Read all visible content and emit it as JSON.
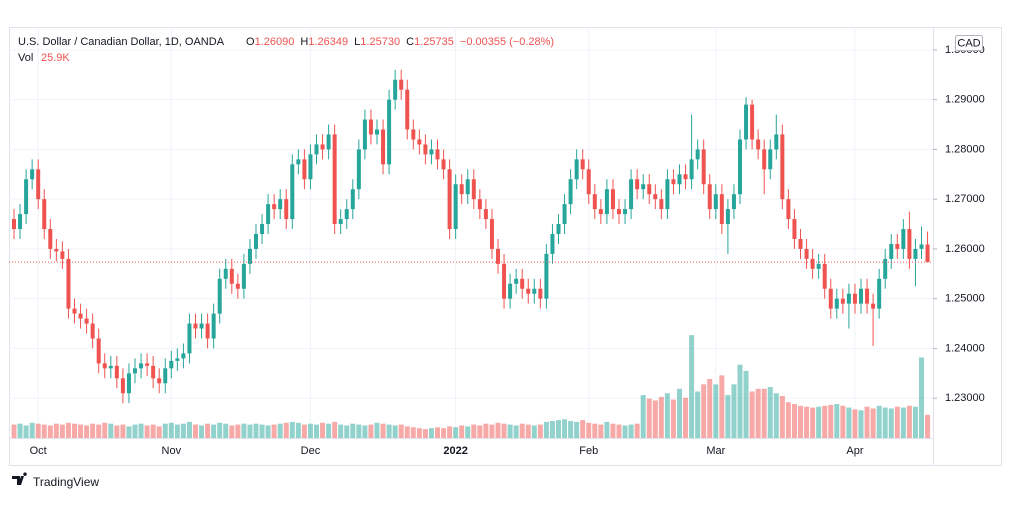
{
  "chart_data": {
    "type": "candlestick",
    "header": {
      "title": "U.S. Dollar / Canadian Dollar, 1D, OANDA",
      "o_label": "O",
      "o": "1.26090",
      "h_label": "H",
      "h": "1.26349",
      "l_label": "L",
      "l": "1.25730",
      "c_label": "C",
      "c": "1.25735",
      "change": "−0.00355 (−0.28%)",
      "vol_label": "Vol",
      "vol": "25.9K"
    },
    "currency": "CAD",
    "brand": "TradingView",
    "up_color": "#26a69a",
    "down_color": "#ef5350",
    "ylim": [
      1.222,
      1.3046
    ],
    "yticks": [
      {
        "value": 1.23,
        "label": "1.23000"
      },
      {
        "value": 1.24,
        "label": "1.24000"
      },
      {
        "value": 1.25,
        "label": "1.25000"
      },
      {
        "value": 1.26,
        "label": "1.26000"
      },
      {
        "value": 1.27,
        "label": "1.27000"
      },
      {
        "value": 1.28,
        "label": "1.28000"
      },
      {
        "value": 1.29,
        "label": "1.29000"
      },
      {
        "value": 1.3,
        "label": "1.30000"
      }
    ],
    "xticks": [
      {
        "value": 4,
        "label": "Oct"
      },
      {
        "value": 26,
        "label": "Nov"
      },
      {
        "value": 49,
        "label": "Dec"
      },
      {
        "value": 73,
        "label": "2022"
      },
      {
        "value": 95,
        "label": "Feb"
      },
      {
        "value": 116,
        "label": "Mar"
      },
      {
        "value": 139,
        "label": "Apr"
      }
    ],
    "volume_lim": [
      0,
      180000
    ],
    "grid": true,
    "open": [
      1.266,
      1.264,
      1.267,
      1.274,
      1.276,
      1.27,
      1.264,
      1.26,
      1.2595,
      1.258,
      1.248,
      1.247,
      1.246,
      1.245,
      1.242,
      1.237,
      1.236,
      1.2365,
      1.234,
      1.231,
      1.235,
      1.236,
      1.237,
      1.2365,
      1.234,
      1.233,
      1.236,
      1.2375,
      1.238,
      1.239,
      1.245,
      1.244,
      1.245,
      1.242,
      1.247,
      1.254,
      1.256,
      1.253,
      1.252,
      1.257,
      1.26,
      1.263,
      1.265,
      1.269,
      1.268,
      1.27,
      1.266,
      1.277,
      1.278,
      1.274,
      1.279,
      1.281,
      1.28,
      1.283,
      1.265,
      1.266,
      1.268,
      1.272,
      1.28,
      1.286,
      1.283,
      1.284,
      1.277,
      1.29,
      1.294,
      1.292,
      1.284,
      1.282,
      1.281,
      1.279,
      1.28,
      1.278,
      1.276,
      1.264,
      1.273,
      1.271,
      1.274,
      1.27,
      1.268,
      1.266,
      1.26,
      1.257,
      1.25,
      1.253,
      1.254,
      1.252,
      1.251,
      1.252,
      1.25,
      1.259,
      1.263,
      1.265,
      1.269,
      1.274,
      1.278,
      1.276,
      1.271,
      1.268,
      1.267,
      1.272,
      1.268,
      1.267,
      1.268,
      1.274,
      1.272,
      1.273,
      1.271,
      1.27,
      1.268,
      1.274,
      1.273,
      1.275,
      1.274,
      1.278,
      1.28,
      1.273,
      1.268,
      1.271,
      1.265,
      1.268,
      1.271,
      1.282,
      1.289,
      1.282,
      1.28,
      1.276,
      1.28,
      1.283,
      1.27,
      1.266,
      1.262,
      1.26,
      1.258,
      1.256,
      1.257,
      1.252,
      1.248,
      1.25,
      1.249,
      1.251,
      1.249,
      1.252,
      1.249,
      1.248,
      1.254,
      1.258,
      1.261,
      1.26,
      1.264,
      1.258,
      1.26,
      1.2609
    ],
    "high": [
      1.268,
      1.269,
      1.276,
      1.278,
      1.278,
      1.272,
      1.266,
      1.262,
      1.2615,
      1.26,
      1.25,
      1.249,
      1.248,
      1.247,
      1.244,
      1.239,
      1.2385,
      1.2385,
      1.236,
      1.237,
      1.238,
      1.239,
      1.239,
      1.2385,
      1.236,
      1.238,
      1.2395,
      1.24,
      1.241,
      1.247,
      1.247,
      1.247,
      1.247,
      1.249,
      1.256,
      1.258,
      1.258,
      1.255,
      1.259,
      1.262,
      1.265,
      1.267,
      1.271,
      1.271,
      1.272,
      1.272,
      1.279,
      1.28,
      1.28,
      1.281,
      1.283,
      1.283,
      1.285,
      1.285,
      1.268,
      1.27,
      1.274,
      1.282,
      1.288,
      1.288,
      1.286,
      1.286,
      1.292,
      1.296,
      1.296,
      1.294,
      1.286,
      1.284,
      1.283,
      1.282,
      1.282,
      1.28,
      1.278,
      1.275,
      1.275,
      1.276,
      1.276,
      1.272,
      1.27,
      1.268,
      1.262,
      1.259,
      1.255,
      1.256,
      1.256,
      1.254,
      1.254,
      1.254,
      1.261,
      1.265,
      1.267,
      1.271,
      1.276,
      1.28,
      1.28,
      1.278,
      1.273,
      1.27,
      1.274,
      1.274,
      1.27,
      1.27,
      1.276,
      1.276,
      1.275,
      1.275,
      1.273,
      1.272,
      1.276,
      1.276,
      1.277,
      1.277,
      1.287,
      1.282,
      1.282,
      1.275,
      1.273,
      1.273,
      1.27,
      1.273,
      1.284,
      1.2905,
      1.29,
      1.284,
      1.282,
      1.282,
      1.287,
      1.285,
      1.272,
      1.268,
      1.264,
      1.262,
      1.26,
      1.259,
      1.259,
      1.254,
      1.252,
      1.252,
      1.253,
      1.253,
      1.254,
      1.254,
      1.251,
      1.256,
      1.26,
      1.263,
      1.263,
      1.266,
      1.2675,
      1.262,
      1.2645,
      1.26349
    ],
    "low": [
      1.262,
      1.262,
      1.265,
      1.272,
      1.268,
      1.262,
      1.258,
      1.2575,
      1.256,
      1.246,
      1.245,
      1.244,
      1.243,
      1.24,
      1.235,
      1.234,
      1.234,
      1.232,
      1.229,
      1.229,
      1.233,
      1.234,
      1.2345,
      1.232,
      1.231,
      1.231,
      1.234,
      1.2355,
      1.236,
      1.237,
      1.242,
      1.242,
      1.24,
      1.24,
      1.245,
      1.252,
      1.251,
      1.25,
      1.25,
      1.255,
      1.258,
      1.261,
      1.263,
      1.266,
      1.266,
      1.264,
      1.264,
      1.275,
      1.272,
      1.272,
      1.277,
      1.278,
      1.278,
      1.263,
      1.263,
      1.264,
      1.266,
      1.27,
      1.278,
      1.281,
      1.281,
      1.275,
      1.275,
      1.288,
      1.29,
      1.282,
      1.28,
      1.279,
      1.277,
      1.277,
      1.276,
      1.274,
      1.262,
      1.262,
      1.269,
      1.269,
      1.268,
      1.266,
      1.264,
      1.258,
      1.255,
      1.248,
      1.248,
      1.251,
      1.25,
      1.249,
      1.249,
      1.248,
      1.248,
      1.257,
      1.261,
      1.263,
      1.267,
      1.272,
      1.274,
      1.269,
      1.266,
      1.265,
      1.265,
      1.266,
      1.265,
      1.265,
      1.266,
      1.27,
      1.27,
      1.269,
      1.268,
      1.266,
      1.266,
      1.271,
      1.271,
      1.272,
      1.272,
      1.276,
      1.271,
      1.266,
      1.266,
      1.263,
      1.259,
      1.266,
      1.269,
      1.28,
      1.28,
      1.278,
      1.271,
      1.274,
      1.278,
      1.268,
      1.264,
      1.26,
      1.258,
      1.256,
      1.254,
      1.254,
      1.25,
      1.246,
      1.246,
      1.247,
      1.244,
      1.247,
      1.247,
      1.247,
      1.2405,
      1.246,
      1.252,
      1.256,
      1.258,
      1.258,
      1.256,
      1.2525,
      1.258,
      1.2573
    ],
    "close": [
      1.264,
      1.267,
      1.274,
      1.276,
      1.27,
      1.264,
      1.26,
      1.2595,
      1.258,
      1.248,
      1.247,
      1.246,
      1.245,
      1.242,
      1.237,
      1.236,
      1.2365,
      1.234,
      1.231,
      1.235,
      1.236,
      1.237,
      1.2365,
      1.234,
      1.233,
      1.236,
      1.2375,
      1.238,
      1.239,
      1.245,
      1.244,
      1.245,
      1.242,
      1.247,
      1.254,
      1.256,
      1.253,
      1.252,
      1.257,
      1.26,
      1.263,
      1.265,
      1.269,
      1.268,
      1.27,
      1.266,
      1.277,
      1.278,
      1.274,
      1.279,
      1.281,
      1.28,
      1.283,
      1.265,
      1.266,
      1.268,
      1.272,
      1.28,
      1.286,
      1.283,
      1.284,
      1.277,
      1.29,
      1.294,
      1.292,
      1.284,
      1.282,
      1.281,
      1.279,
      1.28,
      1.278,
      1.276,
      1.264,
      1.273,
      1.271,
      1.274,
      1.27,
      1.268,
      1.266,
      1.26,
      1.257,
      1.25,
      1.253,
      1.254,
      1.252,
      1.251,
      1.252,
      1.25,
      1.259,
      1.263,
      1.265,
      1.269,
      1.274,
      1.278,
      1.276,
      1.271,
      1.268,
      1.267,
      1.272,
      1.268,
      1.267,
      1.268,
      1.274,
      1.272,
      1.273,
      1.271,
      1.27,
      1.268,
      1.274,
      1.273,
      1.275,
      1.274,
      1.278,
      1.28,
      1.273,
      1.268,
      1.271,
      1.265,
      1.268,
      1.271,
      1.282,
      1.289,
      1.282,
      1.28,
      1.276,
      1.28,
      1.283,
      1.27,
      1.266,
      1.262,
      1.26,
      1.258,
      1.256,
      1.257,
      1.252,
      1.248,
      1.25,
      1.249,
      1.251,
      1.249,
      1.252,
      1.249,
      1.248,
      1.254,
      1.258,
      1.261,
      1.26,
      1.264,
      1.258,
      1.26,
      1.2609,
      1.25735
    ],
    "volume": [
      15000,
      16000,
      14000,
      17000,
      16000,
      15000,
      14000,
      16000,
      15000,
      17000,
      16000,
      15000,
      14000,
      16000,
      15000,
      17000,
      16000,
      14000,
      15000,
      13000,
      15000,
      16000,
      14000,
      15000,
      13000,
      16000,
      17000,
      15000,
      16000,
      18000,
      15000,
      14000,
      16000,
      15000,
      17000,
      16000,
      14000,
      15000,
      16000,
      15000,
      16000,
      15000,
      14000,
      15000,
      16000,
      17000,
      18000,
      17000,
      15000,
      16000,
      15000,
      17000,
      16000,
      18000,
      15000,
      14000,
      16000,
      15000,
      14000,
      15000,
      17000,
      16000,
      15000,
      14000,
      15000,
      13000,
      12000,
      11000,
      10000,
      11000,
      12000,
      11000,
      13000,
      12000,
      14000,
      13000,
      15000,
      14000,
      16000,
      15000,
      17000,
      16000,
      15000,
      14000,
      16000,
      15000,
      14000,
      15000,
      18000,
      19000,
      20000,
      21000,
      19000,
      18000,
      20000,
      17000,
      16000,
      15000,
      18000,
      16000,
      15000,
      14000,
      15000,
      16000,
      48000,
      44000,
      42000,
      46000,
      50000,
      43000,
      55000,
      45000,
      115000,
      52000,
      60000,
      66000,
      60000,
      70000,
      48000,
      60000,
      82000,
      75000,
      52000,
      55000,
      55000,
      57000,
      50000,
      47000,
      40000,
      38000,
      36000,
      35000,
      34000,
      35000,
      36000,
      37000,
      38000,
      36000,
      34000,
      32000,
      31000,
      35000,
      33000,
      36000,
      34000,
      33000,
      35000,
      34000,
      36000,
      35000,
      90000,
      25900
    ]
  }
}
